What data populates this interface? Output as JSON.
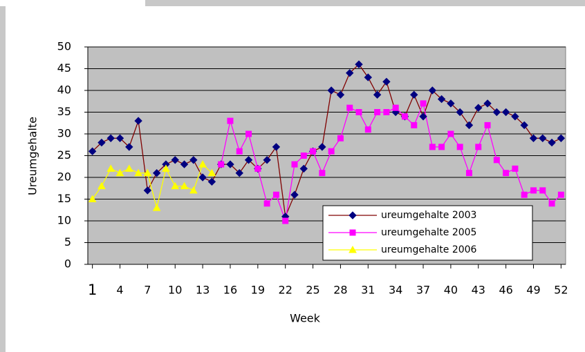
{
  "chart_data": {
    "type": "line",
    "x_label": "Week",
    "y_label": "Ureumgehalte",
    "x": [
      1,
      2,
      3,
      4,
      5,
      6,
      7,
      8,
      9,
      10,
      11,
      12,
      13,
      14,
      15,
      16,
      17,
      18,
      19,
      20,
      21,
      22,
      23,
      24,
      25,
      26,
      27,
      28,
      29,
      30,
      31,
      32,
      33,
      34,
      35,
      36,
      37,
      38,
      39,
      40,
      41,
      42,
      43,
      44,
      45,
      46,
      47,
      48,
      49,
      50,
      51,
      52
    ],
    "xlim": [
      0.5,
      52.5
    ],
    "xticks": [
      1,
      4,
      7,
      10,
      13,
      16,
      19,
      22,
      25,
      28,
      31,
      34,
      37,
      40,
      43,
      46,
      49,
      52
    ],
    "ylim": [
      0,
      50
    ],
    "yticks": [
      0,
      5,
      10,
      15,
      20,
      25,
      30,
      35,
      40,
      45,
      50
    ],
    "grid": true,
    "legend": "lower right",
    "series": [
      {
        "name": "ureumgehalte 2003",
        "color": "#000080",
        "line_color": "#800000",
        "marker": "diamond",
        "values": [
          26,
          28,
          29,
          29,
          27,
          33,
          17,
          21,
          23,
          24,
          23,
          24,
          20,
          19,
          23,
          23,
          21,
          24,
          22,
          24,
          27,
          11,
          16,
          22,
          26,
          27,
          40,
          39,
          44,
          46,
          43,
          39,
          42,
          35,
          34,
          39,
          34,
          40,
          38,
          37,
          35,
          32,
          36,
          37,
          35,
          35,
          34,
          32,
          29,
          29,
          28,
          29
        ]
      },
      {
        "name": "ureumgehalte 2005",
        "color": "#ff00ff",
        "line_color": "#ff00ff",
        "marker": "square",
        "values": [
          null,
          null,
          null,
          null,
          null,
          null,
          null,
          null,
          null,
          null,
          null,
          null,
          null,
          null,
          23,
          33,
          26,
          30,
          22,
          14,
          16,
          10,
          23,
          25,
          26,
          21,
          26,
          29,
          36,
          35,
          31,
          35,
          35,
          36,
          34,
          32,
          37,
          27,
          27,
          30,
          27,
          21,
          27,
          32,
          24,
          21,
          22,
          16,
          17,
          17,
          14,
          16
        ]
      },
      {
        "name": "ureumgehalte 2006",
        "color": "#ffff00",
        "line_color": "#ffff00",
        "marker": "triangle",
        "values": [
          15,
          18,
          22,
          21,
          22,
          21,
          21,
          13,
          22,
          18,
          18,
          17,
          23,
          21,
          null,
          null,
          null,
          null,
          null,
          null,
          null,
          null,
          null,
          null,
          null,
          null,
          null,
          null,
          null,
          null,
          null,
          null,
          null,
          null,
          null,
          null,
          null,
          null,
          null,
          null,
          null,
          null,
          null,
          null,
          null,
          null,
          null,
          null,
          null,
          null,
          null,
          null
        ]
      }
    ]
  }
}
